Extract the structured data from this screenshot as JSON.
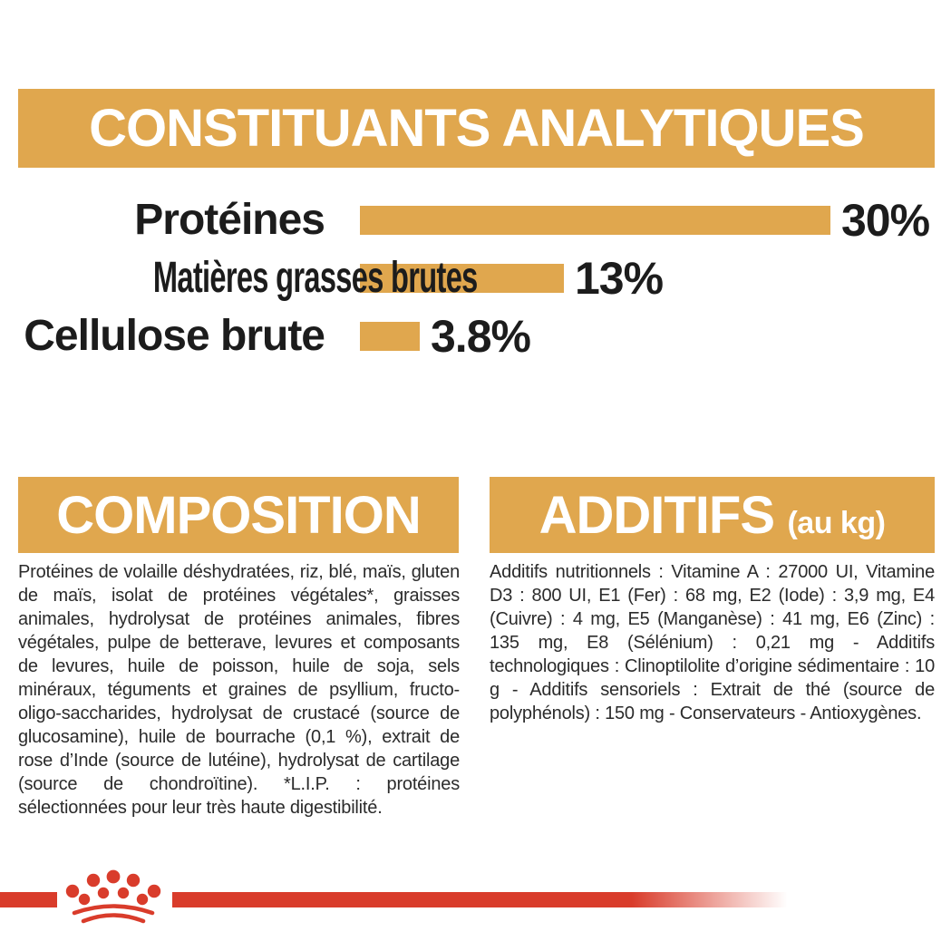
{
  "page": {
    "background": "#ffffff",
    "accent_gold": "#E0A74E",
    "brand_red": "#D93C2B",
    "text_color": "#262626"
  },
  "analytical": {
    "title": "CONSTITUANTS ANALYTIQUES"
  },
  "chart_data": {
    "type": "bar",
    "orientation": "horizontal",
    "title": "CONSTITUANTS ANALYTIQUES",
    "categories": [
      "Protéines",
      "Matières grasses brutes",
      "Cellulose brute"
    ],
    "values": [
      30,
      13,
      3.8
    ],
    "value_labels": [
      "30%",
      "13%",
      "3.8%"
    ],
    "unit": "%",
    "xlim": [
      0,
      30
    ],
    "bar_color": "#E0A74E",
    "grid": "off",
    "legend": "none"
  },
  "composition": {
    "title": "COMPOSITION",
    "body": "Protéines de volaille déshydratées, riz, blé, maïs, gluten de maïs, isolat de protéines végétales*, graisses animales, hydrolysat de protéines animales, fibres végétales, pulpe de betterave, levures et composants de levures, huile de poisson, huile de soja, sels minéraux, téguments et graines de psyllium, fructo-oligo-saccharides, hydrolysat de crustacé (source de glucosamine), huile de bourrache (0,1 %), extrait de rose d’Inde (source de lutéine), hydrolysat de cartilage (source de chondroïtine). *L.I.P. : protéines sélectionnées pour leur très haute digestibilité."
  },
  "additives": {
    "title": "ADDITIFS",
    "title_suffix": "(au kg)",
    "body": "Additifs nutritionnels : Vitamine A : 27000 UI, Vitamine D3 : 800 UI, E1 (Fer) : 68 mg, E2 (Iode) : 3,9 mg, E4 (Cuivre) : 4 mg, E5 (Manganèse) : 41 mg, E6 (Zinc) : 135 mg, E8 (Sélénium) : 0,21 mg - Additifs technologiques : Clinoptilolite d’origine sédimentaire : 10 g - Additifs sensoriels : Extrait de thé (source de polyphénols) : 150 mg - Conservateurs - Antioxygènes.",
    "footer_logo": "royal-canin-crown"
  }
}
